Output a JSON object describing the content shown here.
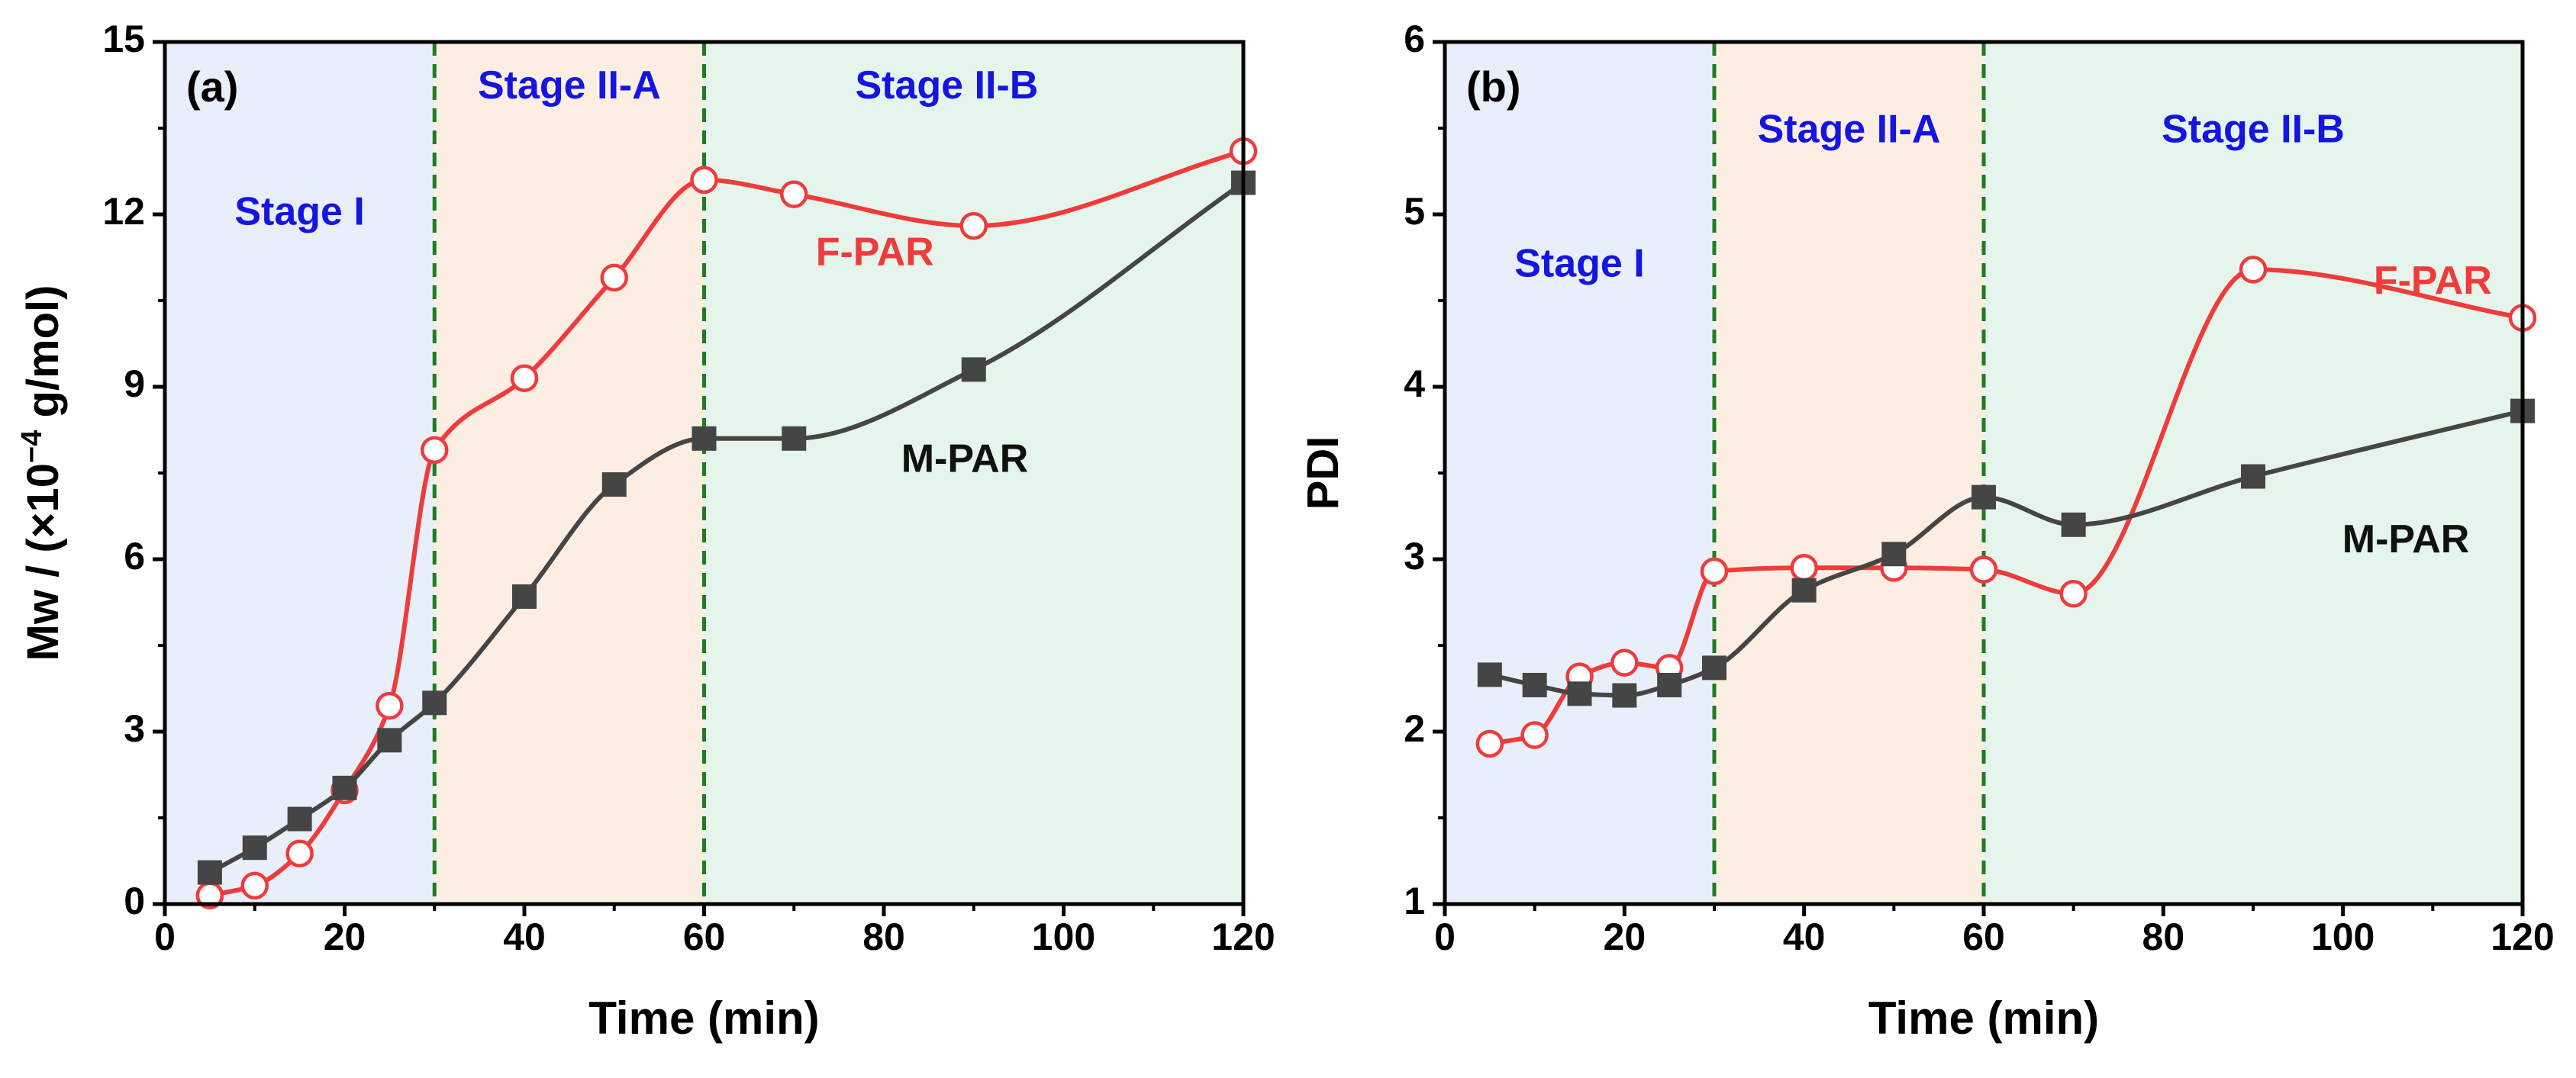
{
  "chart_data": [
    {
      "type": "line",
      "panel": "(a)",
      "xlabel": "Time (min)",
      "ylabel_prefix": "Mw / (×10",
      "ylabel_exp": "−4",
      "ylabel_suffix": " g/mol)",
      "xlim": [
        0,
        120
      ],
      "ylim": [
        0,
        15
      ],
      "xticks": [
        0,
        20,
        40,
        60,
        80,
        100,
        120
      ],
      "yticks": [
        0,
        3,
        6,
        9,
        12,
        15
      ],
      "stage_boundaries": [
        30,
        60
      ],
      "stages": [
        {
          "label": "Stage I",
          "from": 0,
          "to": 30,
          "color": "#e8effa",
          "label_x": 15,
          "label_y": 12.0
        },
        {
          "label": "Stage II-A",
          "from": 30,
          "to": 60,
          "color": "#fdeee4",
          "label_x": 45,
          "label_y": 14.2
        },
        {
          "label": "Stage II-B",
          "from": 60,
          "to": 120,
          "color": "#e6f5ec",
          "label_x": 87,
          "label_y": 14.2
        }
      ],
      "series": [
        {
          "name": "F-PAR",
          "color": "#ef3b3b",
          "marker": "open-circle",
          "x": [
            5,
            10,
            15,
            20,
            25,
            30,
            40,
            50,
            60,
            70,
            90,
            120
          ],
          "y": [
            0.15,
            0.32,
            0.88,
            1.98,
            3.45,
            7.9,
            9.15,
            10.9,
            12.6,
            12.35,
            11.8,
            13.1
          ],
          "label_x": 79,
          "label_y": 11.3
        },
        {
          "name": "M-PAR",
          "color": "#454545",
          "marker": "filled-square",
          "x": [
            5,
            10,
            15,
            20,
            25,
            30,
            40,
            50,
            60,
            70,
            90,
            120
          ],
          "y": [
            0.55,
            0.98,
            1.48,
            2.02,
            2.85,
            3.5,
            5.35,
            7.3,
            8.1,
            8.1,
            9.3,
            12.55
          ],
          "label_x": 89,
          "label_y": 7.7
        }
      ]
    },
    {
      "type": "line",
      "panel": "(b)",
      "xlabel": "Time (min)",
      "ylabel": "PDI",
      "xlim": [
        0,
        120
      ],
      "ylim": [
        1,
        6
      ],
      "xticks": [
        0,
        20,
        40,
        60,
        80,
        100,
        120
      ],
      "yticks": [
        1,
        2,
        3,
        4,
        5,
        6
      ],
      "stage_boundaries": [
        30,
        60
      ],
      "stages": [
        {
          "label": "Stage I",
          "from": 0,
          "to": 30,
          "color": "#e8effa",
          "label_x": 15,
          "label_y": 4.7
        },
        {
          "label": "Stage II-A",
          "from": 30,
          "to": 60,
          "color": "#fdeee4",
          "label_x": 45,
          "label_y": 5.48
        },
        {
          "label": "Stage II-B",
          "from": 60,
          "to": 120,
          "color": "#e6f5ec",
          "label_x": 90,
          "label_y": 5.48
        }
      ],
      "series": [
        {
          "name": "F-PAR",
          "color": "#ef3b3b",
          "marker": "open-circle",
          "x": [
            5,
            10,
            15,
            20,
            25,
            30,
            40,
            50,
            60,
            70,
            90,
            120
          ],
          "y": [
            1.93,
            1.98,
            2.32,
            2.4,
            2.37,
            2.93,
            2.95,
            2.95,
            2.94,
            2.8,
            4.68,
            4.4
          ],
          "label_x": 110,
          "label_y": 4.6
        },
        {
          "name": "M-PAR",
          "color": "#454545",
          "marker": "filled-square",
          "x": [
            5,
            10,
            15,
            20,
            25,
            30,
            40,
            50,
            60,
            70,
            90,
            120
          ],
          "y": [
            2.33,
            2.27,
            2.22,
            2.21,
            2.27,
            2.37,
            2.82,
            3.03,
            3.36,
            3.2,
            3.48,
            3.86
          ],
          "label_x": 107,
          "label_y": 3.1
        }
      ]
    }
  ]
}
